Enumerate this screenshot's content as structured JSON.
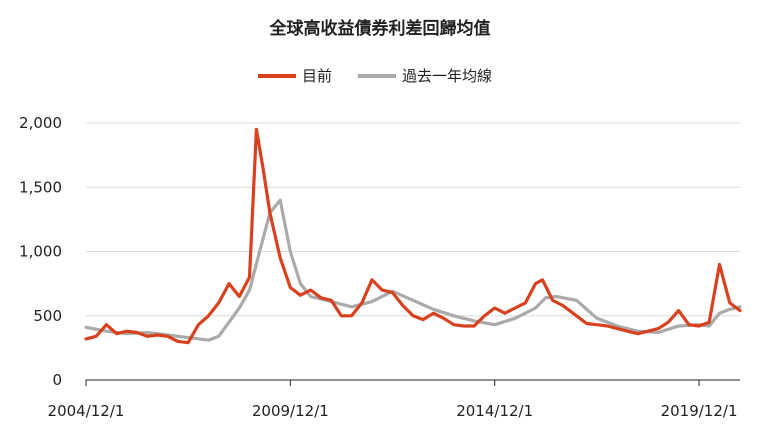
{
  "chart_data": {
    "type": "line",
    "title": "全球高收益債券利差回歸均值",
    "xlabel": "",
    "ylabel": "",
    "ylim": [
      0,
      2000
    ],
    "yticks": [
      0,
      500,
      1000,
      1500,
      2000
    ],
    "ytick_labels": [
      "0",
      "500",
      "1,000",
      "1,500",
      "2,000"
    ],
    "xlim": [
      "2004-12-01",
      "2020-12-01"
    ],
    "xticks": [
      "2004-12-01",
      "2009-12-01",
      "2014-12-01",
      "2019-12-01"
    ],
    "xtick_labels": [
      "2004/12/1",
      "2009/12/1",
      "2014/12/1",
      "2019/12/1"
    ],
    "grid": "horizontal",
    "legend": "top-center",
    "series": [
      {
        "name": "目前",
        "color": "#d9411e",
        "x": [
          "2004-12-01",
          "2005-03-01",
          "2005-06-01",
          "2005-09-01",
          "2005-12-01",
          "2006-03-01",
          "2006-06-01",
          "2006-09-01",
          "2006-12-01",
          "2007-03-01",
          "2007-06-01",
          "2007-09-01",
          "2007-12-01",
          "2008-03-01",
          "2008-06-01",
          "2008-09-01",
          "2008-12-01",
          "2009-02-01",
          "2009-04-01",
          "2009-06-01",
          "2009-09-01",
          "2009-12-01",
          "2010-03-01",
          "2010-06-01",
          "2010-09-01",
          "2010-12-01",
          "2011-03-01",
          "2011-06-01",
          "2011-09-01",
          "2011-12-01",
          "2012-03-01",
          "2012-06-01",
          "2012-09-01",
          "2012-12-01",
          "2013-03-01",
          "2013-06-01",
          "2013-09-01",
          "2013-12-01",
          "2014-03-01",
          "2014-06-01",
          "2014-09-01",
          "2014-12-01",
          "2015-03-01",
          "2015-06-01",
          "2015-09-01",
          "2015-12-01",
          "2016-02-01",
          "2016-05-01",
          "2016-08-01",
          "2016-12-01",
          "2017-03-01",
          "2017-06-01",
          "2017-09-01",
          "2017-12-01",
          "2018-03-01",
          "2018-06-01",
          "2018-09-01",
          "2018-12-01",
          "2019-03-01",
          "2019-06-01",
          "2019-09-01",
          "2019-12-01",
          "2020-03-01",
          "2020-06-01",
          "2020-09-01",
          "2020-12-01"
        ],
        "values": [
          320,
          340,
          430,
          360,
          380,
          370,
          340,
          350,
          340,
          300,
          290,
          430,
          500,
          600,
          750,
          650,
          800,
          1950,
          1650,
          1300,
          950,
          720,
          660,
          700,
          640,
          620,
          500,
          500,
          600,
          780,
          700,
          680,
          580,
          500,
          470,
          520,
          480,
          430,
          420,
          420,
          500,
          560,
          520,
          560,
          600,
          750,
          780,
          620,
          580,
          500,
          440,
          430,
          420,
          400,
          380,
          360,
          380,
          400,
          450,
          540,
          430,
          420,
          450,
          900,
          600,
          540
        ]
      },
      {
        "name": "過去一年均線",
        "color": "#aaaaaa",
        "x": [
          "2004-12-01",
          "2005-06-01",
          "2005-12-01",
          "2006-06-01",
          "2006-12-01",
          "2007-06-01",
          "2007-12-01",
          "2008-03-01",
          "2008-06-01",
          "2008-09-01",
          "2008-12-01",
          "2009-03-01",
          "2009-06-01",
          "2009-09-01",
          "2009-12-01",
          "2010-03-01",
          "2010-06-01",
          "2010-12-01",
          "2011-06-01",
          "2011-12-01",
          "2012-06-01",
          "2012-12-01",
          "2013-06-01",
          "2013-12-01",
          "2014-06-01",
          "2014-12-01",
          "2015-06-01",
          "2015-12-01",
          "2016-03-01",
          "2016-06-01",
          "2016-12-01",
          "2017-06-01",
          "2017-12-01",
          "2018-06-01",
          "2018-12-01",
          "2019-06-01",
          "2019-12-01",
          "2020-03-01",
          "2020-06-01",
          "2020-09-01",
          "2020-12-01"
        ],
        "values": [
          410,
          380,
          360,
          370,
          350,
          330,
          310,
          340,
          450,
          560,
          700,
          1000,
          1300,
          1400,
          1000,
          750,
          650,
          610,
          570,
          610,
          690,
          620,
          550,
          500,
          460,
          430,
          480,
          560,
          640,
          650,
          620,
          480,
          420,
          380,
          370,
          420,
          430,
          420,
          520,
          550,
          570
        ]
      }
    ]
  }
}
